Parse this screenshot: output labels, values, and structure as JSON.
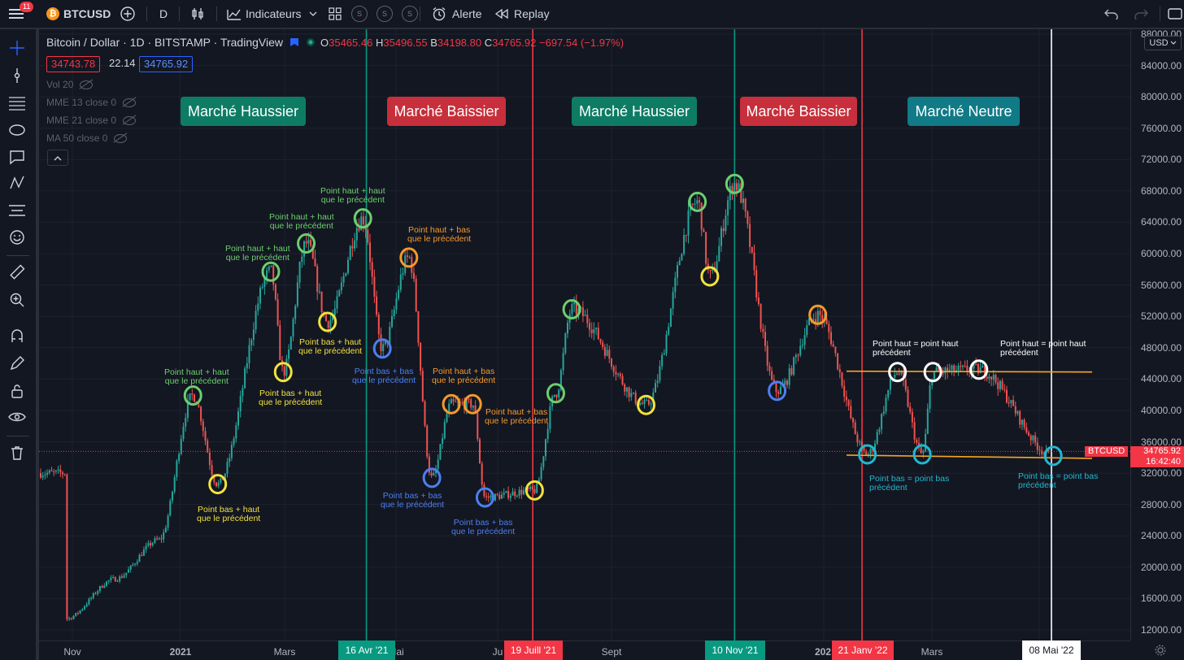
{
  "toolbar": {
    "menu_badge": "11",
    "symbol": "BTCUSD",
    "interval": "D",
    "indicators_label": "Indicateurs",
    "s_buttons": [
      "S",
      "S",
      "S"
    ],
    "alert_label": "Alerte",
    "replay_label": "Replay"
  },
  "legend": {
    "title": "Bitcoin / Dollar · 1D · BITSTAMP · TradingView",
    "o_key": "O",
    "o_val": "35465.46",
    "h_key": "H",
    "h_val": "35496.55",
    "l_key": "B",
    "l_val": "34198.80",
    "c_key": "C",
    "c_val": "34765.92",
    "change": "−697.54 (−1.97%)",
    "bid": "34743.78",
    "spread": "22.14",
    "ask": "34765.92"
  },
  "indicators": [
    {
      "label": "Vol 20"
    },
    {
      "label": "MME 13 close 0"
    },
    {
      "label": "MME 21 close 0"
    },
    {
      "label": "MA 50 close 0"
    }
  ],
  "markets": [
    {
      "label": "Marché Haussier",
      "color": "#0e7c65"
    },
    {
      "label": "Marché Baissier",
      "color": "#c62f3b"
    },
    {
      "label": "Marché Haussier",
      "color": "#0e7c65"
    },
    {
      "label": "Marché Baissier",
      "color": "#c62f3b"
    },
    {
      "label": "Marché Neutre",
      "color": "#107a87"
    }
  ],
  "annotations": [
    {
      "text": [
        "Point haut + haut",
        "que le précédent"
      ],
      "color": "#6ccf6c"
    },
    {
      "text": [
        "Point haut + haut",
        "que le précédent"
      ],
      "color": "#6ccf6c"
    },
    {
      "text": [
        "Point haut + haut",
        "que le précédent"
      ],
      "color": "#6ccf6c"
    },
    {
      "text": [
        "Point haut + haut",
        "que le précédent"
      ],
      "color": "#6ccf6c"
    },
    {
      "text": [
        "Point haut + bas",
        "que le précédent"
      ],
      "color": "#f59a2b"
    },
    {
      "text": [
        "Point bas + haut",
        "que le précédent"
      ],
      "color": "#f3e23c"
    },
    {
      "text": [
        "Point bas + haut",
        "que le précédent"
      ],
      "color": "#f3e23c"
    },
    {
      "text": [
        "Point bas + haut",
        "que le précédent"
      ],
      "color": "#f3e23c"
    },
    {
      "text": [
        "Point bas + bas",
        "que le précédent"
      ],
      "color": "#4d7ff0"
    },
    {
      "text": [
        "Point haut + bas",
        "que le précédent"
      ],
      "color": "#f59a2b"
    },
    {
      "text": [
        "Point haut + bas",
        "que le précédent"
      ],
      "color": "#f59a2b"
    },
    {
      "text": [
        "Point bas + bas",
        "que le précédent"
      ],
      "color": "#4d7ff0"
    },
    {
      "text": [
        "Point bas + bas",
        "que le précédent"
      ],
      "color": "#4d7ff0"
    },
    {
      "text": [
        "Point haut = point haut",
        "précédent"
      ],
      "color": "#ffffff"
    },
    {
      "text": [
        "Point haut = point haut",
        "précédent"
      ],
      "color": "#ffffff"
    },
    {
      "text": [
        "Point bas = point bas",
        "précédent"
      ],
      "color": "#22b8cf"
    },
    {
      "text": [
        "Point bas = point bas",
        "précédent"
      ],
      "color": "#22b8cf"
    }
  ],
  "yaxis": {
    "currency": "USD",
    "labels": [
      "88000.00",
      "84000.00",
      "80000.00",
      "76000.00",
      "72000.00",
      "68000.00",
      "64000.00",
      "60000.00",
      "56000.00",
      "52000.00",
      "48000.00",
      "44000.00",
      "40000.00",
      "36000.00",
      "32000.00",
      "28000.00",
      "24000.00",
      "20000.00",
      "16000.00",
      "12000.00"
    ],
    "symbol_tag": "BTCUSD",
    "price_tag": "34765.92",
    "countdown": "16:42:40"
  },
  "xaxis": {
    "labels": [
      "Nov",
      "2021",
      "Mars",
      "Mai",
      "Ju",
      "Sept",
      "202",
      "Mars"
    ],
    "tags": [
      {
        "label": "16 Avr '21",
        "color": "#089981"
      },
      {
        "label": "19 Juill '21",
        "color": "#f23645"
      },
      {
        "label": "10 Nov '21",
        "color": "#089981"
      },
      {
        "label": "21 Janv '22",
        "color": "#f23645"
      },
      {
        "label": "08 Mai '22",
        "color": "#ffffff"
      }
    ]
  },
  "chart_data": {
    "type": "candlestick",
    "symbol": "BTCUSD",
    "timeframe": "1D",
    "y_range": [
      10000,
      89000
    ],
    "pivots": [
      {
        "date": "2021-01-08",
        "price": 41900,
        "kind": "higher-high",
        "color": "#6ccf6c"
      },
      {
        "date": "2021-01-22",
        "price": 30600,
        "kind": "higher-low",
        "color": "#f3e23c"
      },
      {
        "date": "2021-02-21",
        "price": 57700,
        "kind": "higher-high",
        "color": "#6ccf6c"
      },
      {
        "date": "2021-02-28",
        "price": 44900,
        "kind": "higher-low",
        "color": "#f3e23c"
      },
      {
        "date": "2021-03-13",
        "price": 61300,
        "kind": "higher-high",
        "color": "#6ccf6c"
      },
      {
        "date": "2021-03-25",
        "price": 51300,
        "kind": "higher-low",
        "color": "#f3e23c"
      },
      {
        "date": "2021-04-14",
        "price": 64500,
        "kind": "higher-high",
        "color": "#6ccf6c"
      },
      {
        "date": "2021-04-25",
        "price": 47900,
        "kind": "lower-low",
        "color": "#4d7ff0"
      },
      {
        "date": "2021-05-10",
        "price": 59500,
        "kind": "lower-high",
        "color": "#f59a2b"
      },
      {
        "date": "2021-05-23",
        "price": 31400,
        "kind": "lower-low",
        "color": "#4d7ff0"
      },
      {
        "date": "2021-06-03",
        "price": 40800,
        "kind": "lower-high",
        "color": "#f59a2b"
      },
      {
        "date": "2021-06-15",
        "price": 40800,
        "kind": "lower-high",
        "color": "#f59a2b"
      },
      {
        "date": "2021-06-22",
        "price": 28900,
        "kind": "lower-low",
        "color": "#4d7ff0"
      },
      {
        "date": "2021-07-20",
        "price": 29800,
        "kind": "higher-low",
        "color": "#f3e23c"
      },
      {
        "date": "2021-08-01",
        "price": 42200,
        "kind": "higher-high",
        "color": "#6ccf6c"
      },
      {
        "date": "2021-08-10",
        "price": 52900,
        "kind": "higher-high",
        "color": "#6ccf6c"
      },
      {
        "date": "2021-09-21",
        "price": 40700,
        "kind": "higher-low",
        "color": "#f3e23c"
      },
      {
        "date": "2021-10-20",
        "price": 66600,
        "kind": "higher-high",
        "color": "#6ccf6c"
      },
      {
        "date": "2021-10-27",
        "price": 57100,
        "kind": "higher-low",
        "color": "#f3e23c"
      },
      {
        "date": "2021-11-10",
        "price": 68900,
        "kind": "higher-high",
        "color": "#6ccf6c"
      },
      {
        "date": "2021-12-04",
        "price": 42500,
        "kind": "lower-low",
        "color": "#4d7ff0"
      },
      {
        "date": "2021-12-27",
        "price": 52200,
        "kind": "lower-high",
        "color": "#f59a2b"
      },
      {
        "date": "2022-01-24",
        "price": 34400,
        "kind": "equal-low",
        "color": "#22b8cf"
      },
      {
        "date": "2022-02-10",
        "price": 44900,
        "kind": "equal-high",
        "color": "#ffffff"
      },
      {
        "date": "2022-02-24",
        "price": 34400,
        "kind": "equal-low",
        "color": "#22b8cf"
      },
      {
        "date": "2022-03-02",
        "price": 44900,
        "kind": "equal-high",
        "color": "#ffffff"
      },
      {
        "date": "2022-03-28",
        "price": 45200,
        "kind": "equal-high",
        "color": "#ffffff"
      },
      {
        "date": "2022-05-09",
        "price": 34200,
        "kind": "equal-low",
        "color": "#22b8cf"
      }
    ],
    "vertical_lines": [
      {
        "date": "2021-04-16",
        "color": "#089981"
      },
      {
        "date": "2021-07-19",
        "color": "#f23645"
      },
      {
        "date": "2021-11-10",
        "color": "#089981"
      },
      {
        "date": "2022-01-21",
        "color": "#f23645"
      },
      {
        "date": "2022-05-08",
        "color": "#ffffff"
      }
    ],
    "range_lines": [
      {
        "price": 45000,
        "color": "#f5a623"
      },
      {
        "price": 34300,
        "color": "#f5a623"
      }
    ],
    "last_price": 34765.92
  }
}
